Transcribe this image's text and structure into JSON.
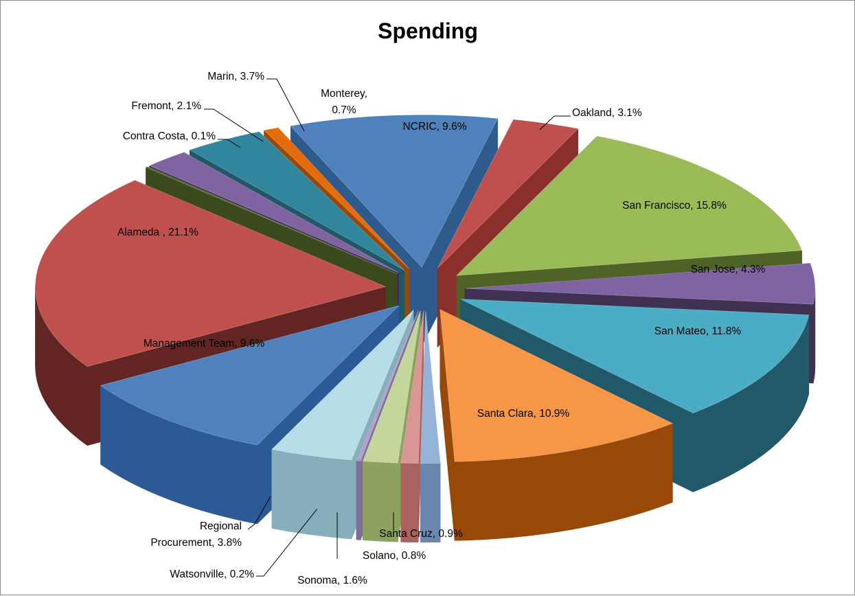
{
  "chart_data": {
    "type": "pie",
    "title": "Spending",
    "legend": "none",
    "data_labels": "category-name-and-percent",
    "slices": [
      {
        "name": "NCRIC",
        "percent": 9.6,
        "label": "NCRIC, 9.6%",
        "color": "#4f81bd",
        "side": "#2f5a8c"
      },
      {
        "name": "Oakland",
        "percent": 3.1,
        "label": "Oakland, 3.1%",
        "color": "#c0504d",
        "side": "#8b2f2d"
      },
      {
        "name": "San Francisco",
        "percent": 15.8,
        "label": "San Francisco, 15.8%",
        "color": "#9bbb59",
        "side": "#4f6228"
      },
      {
        "name": "San Jose",
        "percent": 4.3,
        "label": "San Jose, 4.3%",
        "color": "#8064a2",
        "side": "#3f3151"
      },
      {
        "name": "San Mateo",
        "percent": 11.8,
        "label": "San Mateo, 11.8%",
        "color": "#4bacc6",
        "side": "#215968"
      },
      {
        "name": "Santa Clara",
        "percent": 10.9,
        "label": "Santa Clara, 10.9%",
        "color": "#f79646",
        "side": "#984807"
      },
      {
        "name": "Santa Cruz",
        "percent": 0.9,
        "label": "Santa Cruz, 0.9%",
        "color": "#95b3d7",
        "side": "#6a86ad"
      },
      {
        "name": "Solano",
        "percent": 0.8,
        "label": "Solano, 0.8%",
        "color": "#d99694",
        "side": "#a86260"
      },
      {
        "name": "Sonoma",
        "percent": 1.6,
        "label": "Sonoma, 1.6%",
        "color": "#c3d69b",
        "side": "#8da25e"
      },
      {
        "name": "Watsonville",
        "percent": 0.2,
        "label": "Watsonville, 0.2%",
        "color": "#b3a2c7",
        "side": "#7f6c99"
      },
      {
        "name": "Regional Procurement",
        "percent": 3.8,
        "label_lines": [
          "Regional",
          "Procurement, 3.8%"
        ],
        "color": "#b7dde8",
        "side": "#86aebb"
      },
      {
        "name": "Management Team",
        "percent": 9.6,
        "label": "Management Team, 9.6%",
        "color": "#4f81bd",
        "side": "#2c5a96"
      },
      {
        "name": "Alameda ",
        "percent": 21.1,
        "label": "Alameda , 21.1%",
        "color": "#c0504d",
        "side": "#632523"
      },
      {
        "name": "Contra Costa",
        "percent": 0.1,
        "label": "Contra Costa, 0.1%",
        "color": "#4f6228",
        "side": "#3a4a1c"
      },
      {
        "name": "Fremont",
        "percent": 2.1,
        "label": "Fremont, 2.1%",
        "color": "#8064a2",
        "side": "#3f3151"
      },
      {
        "name": "Marin",
        "percent": 3.7,
        "label": "Marin, 3.7%",
        "color": "#31859c",
        "side": "#205867"
      },
      {
        "name": "Monterey",
        "percent": 0.7,
        "label_lines": [
          "Monterey,",
          "0.7%"
        ],
        "color": "#e46c0a",
        "side": "#984807"
      }
    ]
  }
}
